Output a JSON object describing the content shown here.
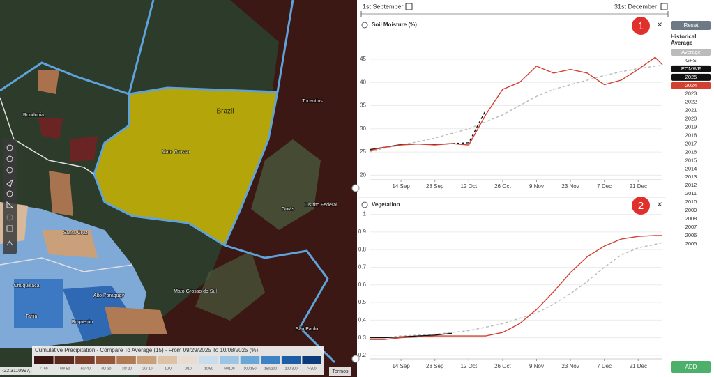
{
  "map": {
    "labels": [
      "Brazil",
      "Rondonia",
      "Mato Grosso",
      "Tocantins",
      "Goiás",
      "Distrito Federal",
      "Santa Cruz",
      "Mato Grosso do Sul",
      "Alto Paraguay",
      "Boquerón",
      "Chuquisaca",
      "Tarija",
      "São Paulo"
    ],
    "coordinates": "-22.3110997,",
    "attribution": "Termos"
  },
  "map_legend": {
    "title": "Cumulative Precipitation - Compare To Average (15) - From 09/29/2025 To 10/08/2025 (%)",
    "classes": [
      {
        "label": "< -60",
        "color": "#3b1510"
      },
      {
        "label": "-60/-50",
        "color": "#5a2a1e"
      },
      {
        "label": "-50/-40",
        "color": "#7a3e28"
      },
      {
        "label": "-40/-30",
        "color": "#96583a"
      },
      {
        "label": "-30/-20",
        "color": "#b07a55"
      },
      {
        "label": "-20/-10",
        "color": "#c9a07a"
      },
      {
        "label": "-10/0",
        "color": "#dcc3a6"
      },
      {
        "label": "0/10",
        "color": "#e8ddd0"
      },
      {
        "label": "10/50",
        "color": "#c8dcec"
      },
      {
        "label": "50/100",
        "color": "#9cc4e4"
      },
      {
        "label": "100/150",
        "color": "#6aa6d6"
      },
      {
        "label": "150/200",
        "color": "#3d82c4"
      },
      {
        "label": "200/300",
        "color": "#1d5ea6"
      },
      {
        "label": "> 300",
        "color": "#0c3a7a"
      }
    ]
  },
  "date_range": {
    "start": "1st September",
    "end": "31st December"
  },
  "chart_data": [
    {
      "type": "line",
      "title": "Soil Moisture (%)",
      "badge": "1",
      "close": "×",
      "x": [
        "1 Sep",
        "7 Sep",
        "14 Sep",
        "21 Sep",
        "28 Sep",
        "5 Oct",
        "12 Oct",
        "19 Oct",
        "26 Oct",
        "2 Nov",
        "9 Nov",
        "16 Nov",
        "23 Nov",
        "30 Nov",
        "7 Dec",
        "14 Dec",
        "21 Dec",
        "28 Dec",
        "31 Dec"
      ],
      "xlim": [
        "1 Sep",
        "31 Dec"
      ],
      "xticks": [
        "14 Sep",
        "28 Sep",
        "12 Oct",
        "26 Oct",
        "9 Nov",
        "23 Nov",
        "7 Dec",
        "21 Dec"
      ],
      "ylim": [
        19,
        51
      ],
      "yticks": [
        20,
        25,
        30,
        35,
        40,
        45
      ],
      "grid": true,
      "series": [
        {
          "name": "Average",
          "color": "#bbbbbb",
          "style": "dashed",
          "values": [
            25,
            25.8,
            26.5,
            27.2,
            28,
            29,
            30,
            31.5,
            33,
            35,
            37,
            38.5,
            39.5,
            40.5,
            41.5,
            42.3,
            43,
            43.5,
            43.7
          ]
        },
        {
          "name": "ECMWF",
          "color": "#111111",
          "style": "dashed",
          "values": [
            null,
            null,
            null,
            null,
            null,
            26.8,
            27,
            34,
            null,
            null,
            null,
            null,
            null,
            null,
            null,
            null,
            null,
            null,
            null
          ]
        },
        {
          "name": "2025",
          "color": "#111111",
          "style": "solid",
          "values": [
            25.5,
            26,
            26.6,
            26.7,
            26.6,
            26.8,
            null,
            null,
            null,
            null,
            null,
            null,
            null,
            null,
            null,
            null,
            null,
            null,
            null
          ]
        },
        {
          "name": "2024",
          "color": "#d2412f",
          "style": "solid",
          "values": [
            25.3,
            26,
            26.5,
            26.7,
            26.5,
            26.8,
            26.5,
            33,
            38.5,
            40,
            43.5,
            42,
            42.8,
            42,
            39.5,
            40.5,
            42.8,
            45.4,
            43.8
          ]
        }
      ]
    },
    {
      "type": "line",
      "title": "Vegetation",
      "badge": "2",
      "close": "×",
      "x": [
        "1 Sep",
        "7 Sep",
        "14 Sep",
        "21 Sep",
        "28 Sep",
        "5 Oct",
        "12 Oct",
        "19 Oct",
        "26 Oct",
        "2 Nov",
        "9 Nov",
        "16 Nov",
        "23 Nov",
        "30 Nov",
        "7 Dec",
        "14 Dec",
        "21 Dec",
        "28 Dec",
        "31 Dec"
      ],
      "xlim": [
        "1 Sep",
        "31 Dec"
      ],
      "xticks": [
        "14 Sep",
        "28 Sep",
        "12 Oct",
        "26 Oct",
        "9 Nov",
        "23 Nov",
        "7 Dec",
        "21 Dec"
      ],
      "ylim": [
        0.18,
        1.03
      ],
      "yticks": [
        0.2,
        0.3,
        0.4,
        0.5,
        0.6,
        0.7,
        0.8,
        0.9,
        1
      ],
      "grid": true,
      "series": [
        {
          "color": "#bbbbbb",
          "style": "dashed",
          "values": [
            0.3,
            0.3,
            0.31,
            0.315,
            0.32,
            0.33,
            0.34,
            0.36,
            0.38,
            0.41,
            0.44,
            0.49,
            0.55,
            0.62,
            0.7,
            0.77,
            0.81,
            0.83,
            0.84
          ]
        },
        {
          "color": "#111111",
          "style": "solid",
          "values": [
            0.3,
            0.3,
            0.305,
            0.31,
            0.315,
            0.325,
            null,
            null,
            null,
            null,
            null,
            null,
            null,
            null,
            null,
            null,
            null,
            null,
            null
          ]
        },
        {
          "color": "#d2412f",
          "style": "solid",
          "values": [
            0.29,
            0.29,
            0.3,
            0.305,
            0.31,
            0.31,
            0.31,
            0.31,
            0.33,
            0.38,
            0.46,
            0.56,
            0.67,
            0.76,
            0.82,
            0.86,
            0.875,
            0.88,
            0.88
          ]
        }
      ]
    }
  ],
  "sidebar": {
    "reset": "Reset",
    "heading": "Historical Average",
    "gfs": "GFS",
    "years": [
      "2023",
      "2022",
      "2021",
      "2020",
      "2019",
      "2018",
      "2017",
      "2016",
      "2015",
      "2014",
      "2013",
      "2012",
      "2011",
      "2010",
      "2009",
      "2008",
      "2007",
      "2006",
      "2005"
    ],
    "add": "ADD"
  }
}
